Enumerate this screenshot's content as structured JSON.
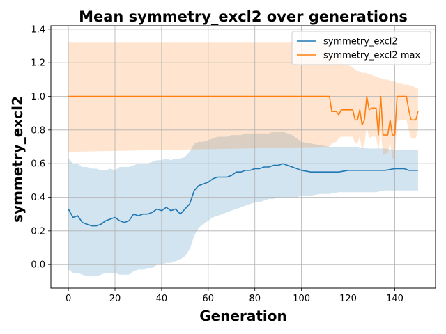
{
  "chart_data": {
    "type": "line",
    "title": "Mean symmetry_excl2 over generations",
    "xlabel": "Generation",
    "ylabel": "symmetry_excl2",
    "xlim": [
      -7.5,
      157.5
    ],
    "ylim": [
      -0.14,
      1.42
    ],
    "xticks": [
      0,
      20,
      40,
      60,
      80,
      100,
      120,
      140
    ],
    "yticks": [
      0.0,
      0.2,
      0.4,
      0.6,
      0.8,
      1.0,
      1.2,
      1.4
    ],
    "xtick_labels": [
      "0",
      "20",
      "40",
      "60",
      "80",
      "100",
      "120",
      "140"
    ],
    "ytick_labels": [
      "0.0",
      "0.2",
      "0.4",
      "0.6",
      "0.8",
      "1.0",
      "1.2",
      "1.4"
    ],
    "grid": true,
    "legend_position": "top-right",
    "series": [
      {
        "name": "symmetry_excl2",
        "color": "#1f77b4",
        "x": [
          0,
          2,
          4,
          6,
          8,
          10,
          12,
          14,
          16,
          18,
          20,
          22,
          24,
          26,
          28,
          30,
          32,
          34,
          36,
          38,
          40,
          42,
          44,
          46,
          48,
          50,
          52,
          54,
          56,
          58,
          60,
          62,
          64,
          66,
          68,
          70,
          72,
          74,
          76,
          78,
          80,
          82,
          84,
          86,
          88,
          90,
          92,
          94,
          96,
          98,
          100,
          104,
          108,
          112,
          116,
          120,
          124,
          128,
          132,
          136,
          140,
          144,
          146,
          150
        ],
        "values": [
          0.33,
          0.28,
          0.29,
          0.25,
          0.24,
          0.23,
          0.23,
          0.24,
          0.26,
          0.27,
          0.28,
          0.26,
          0.25,
          0.26,
          0.3,
          0.29,
          0.3,
          0.3,
          0.31,
          0.33,
          0.32,
          0.34,
          0.32,
          0.33,
          0.3,
          0.33,
          0.36,
          0.44,
          0.47,
          0.48,
          0.49,
          0.51,
          0.52,
          0.52,
          0.52,
          0.53,
          0.55,
          0.55,
          0.56,
          0.56,
          0.57,
          0.57,
          0.58,
          0.58,
          0.59,
          0.59,
          0.6,
          0.59,
          0.58,
          0.57,
          0.56,
          0.55,
          0.55,
          0.55,
          0.55,
          0.56,
          0.56,
          0.56,
          0.56,
          0.56,
          0.57,
          0.57,
          0.56,
          0.56
        ],
        "band_upper": [
          0.63,
          0.6,
          0.6,
          0.58,
          0.58,
          0.57,
          0.57,
          0.56,
          0.56,
          0.57,
          0.56,
          0.58,
          0.58,
          0.58,
          0.59,
          0.6,
          0.6,
          0.6,
          0.61,
          0.62,
          0.62,
          0.63,
          0.62,
          0.63,
          0.63,
          0.64,
          0.67,
          0.72,
          0.73,
          0.73,
          0.74,
          0.75,
          0.76,
          0.76,
          0.76,
          0.77,
          0.77,
          0.77,
          0.78,
          0.78,
          0.78,
          0.78,
          0.78,
          0.78,
          0.79,
          0.79,
          0.79,
          0.78,
          0.77,
          0.75,
          0.73,
          0.72,
          0.71,
          0.7,
          0.7,
          0.7,
          0.7,
          0.69,
          0.69,
          0.69,
          0.68,
          0.68,
          0.68,
          0.68
        ],
        "band_lower": [
          -0.03,
          -0.05,
          -0.05,
          -0.06,
          -0.07,
          -0.07,
          -0.07,
          -0.06,
          -0.05,
          -0.05,
          -0.05,
          -0.06,
          -0.06,
          -0.06,
          -0.04,
          -0.03,
          -0.03,
          -0.02,
          -0.02,
          0.0,
          0.0,
          0.01,
          0.01,
          0.02,
          0.03,
          0.05,
          0.09,
          0.17,
          0.22,
          0.24,
          0.26,
          0.28,
          0.29,
          0.3,
          0.31,
          0.32,
          0.33,
          0.34,
          0.35,
          0.36,
          0.37,
          0.37,
          0.38,
          0.39,
          0.39,
          0.4,
          0.4,
          0.4,
          0.4,
          0.4,
          0.41,
          0.41,
          0.42,
          0.42,
          0.43,
          0.43,
          0.43,
          0.43,
          0.43,
          0.44,
          0.44,
          0.44,
          0.44,
          0.44
        ]
      },
      {
        "name": "symmetry_excl2 max",
        "color": "#ff7f0e",
        "x": [
          0,
          112,
          113,
          115,
          116,
          117,
          119,
          121,
          122,
          123,
          124,
          125,
          126,
          127,
          128,
          129,
          130,
          131,
          132,
          133,
          134,
          135,
          136,
          137,
          138,
          139,
          140,
          141,
          142,
          143,
          144,
          145,
          146,
          147,
          148,
          149,
          150
        ],
        "values": [
          1.0,
          1.0,
          0.91,
          0.91,
          0.89,
          0.92,
          0.92,
          0.92,
          0.92,
          0.86,
          0.86,
          0.92,
          0.83,
          0.86,
          1.0,
          0.92,
          0.93,
          0.93,
          0.93,
          0.77,
          1.0,
          0.77,
          0.77,
          0.77,
          0.86,
          0.77,
          0.77,
          1.0,
          1.0,
          1.0,
          1.0,
          1.0,
          0.92,
          0.86,
          0.86,
          0.86,
          0.91
        ],
        "band_upper": [
          1.32,
          1.32,
          1.25,
          1.24,
          1.23,
          1.2,
          1.19,
          1.18,
          1.17,
          1.16,
          1.15,
          1.15,
          1.14,
          1.14,
          1.14,
          1.13,
          1.13,
          1.12,
          1.12,
          1.11,
          1.11,
          1.1,
          1.1,
          1.1,
          1.09,
          1.09,
          1.09,
          1.08,
          1.08,
          1.08,
          1.07,
          1.07,
          1.07,
          1.06,
          1.06,
          1.05,
          1.05
        ],
        "band_lower": [
          0.67,
          0.7,
          0.72,
          0.73,
          0.75,
          0.76,
          0.76,
          0.76,
          0.76,
          0.72,
          0.72,
          0.76,
          0.68,
          0.72,
          0.82,
          0.75,
          0.76,
          0.76,
          0.76,
          0.67,
          0.8,
          0.65,
          0.66,
          0.66,
          0.73,
          0.63,
          0.63,
          0.85,
          0.86,
          0.86,
          0.86,
          0.86,
          0.8,
          0.75,
          0.75,
          0.75,
          0.8
        ]
      }
    ]
  }
}
